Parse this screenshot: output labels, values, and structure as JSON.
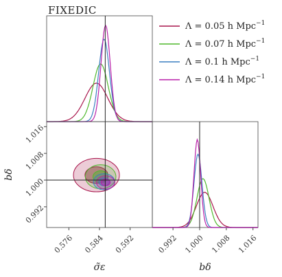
{
  "chart_data": {
    "type": "corner",
    "title": "FIXEDIC",
    "parameters": [
      {
        "name": "sigma_eps",
        "axis_label": "σ̃ε",
        "range": [
          0.5702,
          0.5978
        ],
        "ticks": [
          "0.576",
          "0.584",
          "0.592"
        ],
        "ticks_at": [
          0.576,
          0.584,
          0.592
        ],
        "truth": 0.5855
      },
      {
        "name": "b_delta",
        "axis_label": "bδ",
        "range": [
          0.9858,
          1.0175
        ],
        "ticks": [
          "0.992",
          "1.000",
          "1.008",
          "1.016"
        ],
        "ticks_at": [
          0.992,
          1.0,
          1.008,
          1.016
        ],
        "truth": 1.0
      }
    ],
    "series": [
      {
        "name": "Λ = 0.05 h Mpc",
        "unit_exp": "−1",
        "color": "#a8154b",
        "sigma_eps": {
          "mean": 0.5832,
          "sd": 0.003
        },
        "b_delta": {
          "mean": 1.0015,
          "sd": 0.0025
        }
      },
      {
        "name": "Λ = 0.07 h Mpc",
        "unit_exp": "−1",
        "color": "#4fb82c",
        "sigma_eps": {
          "mean": 0.5843,
          "sd": 0.002
        },
        "b_delta": {
          "mean": 1.001,
          "sd": 0.0018
        }
      },
      {
        "name": "Λ = 0.1 h Mpc",
        "unit_exp": "−1",
        "color": "#3a7ec0",
        "sigma_eps": {
          "mean": 0.5852,
          "sd": 0.0014
        },
        "b_delta": {
          "mean": 0.9995,
          "sd": 0.0012
        }
      },
      {
        "name": "Λ = 0.14 h Mpc",
        "unit_exp": "−1",
        "color": "#b81fa8",
        "sigma_eps": {
          "mean": 0.5856,
          "sd": 0.0012
        },
        "b_delta": {
          "mean": 0.9993,
          "sd": 0.001
        }
      }
    ],
    "legend": "top-right",
    "grid": false
  }
}
